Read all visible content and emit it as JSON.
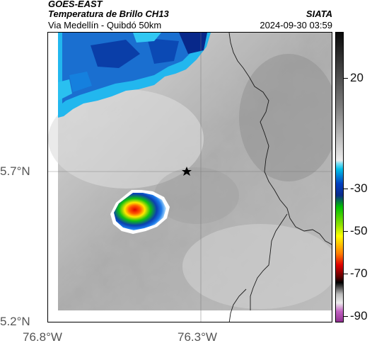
{
  "header": {
    "satellite": "GOES-EAST",
    "product": "Temperatura de Brillo CH13",
    "route": "Via Medellín - Quibdó 50km",
    "org": "SIATA",
    "timestamp": "2024-09-30 03:59"
  },
  "axes": {
    "lat_labels": [
      "5.7°N",
      "5.2°N"
    ],
    "lon_labels": [
      "76.8°W",
      "76.3°W"
    ]
  },
  "colorbar": {
    "ticks": [
      "20",
      "-30",
      "-50",
      "-70",
      "-90"
    ]
  },
  "marker": "reference-station-star-icon"
}
